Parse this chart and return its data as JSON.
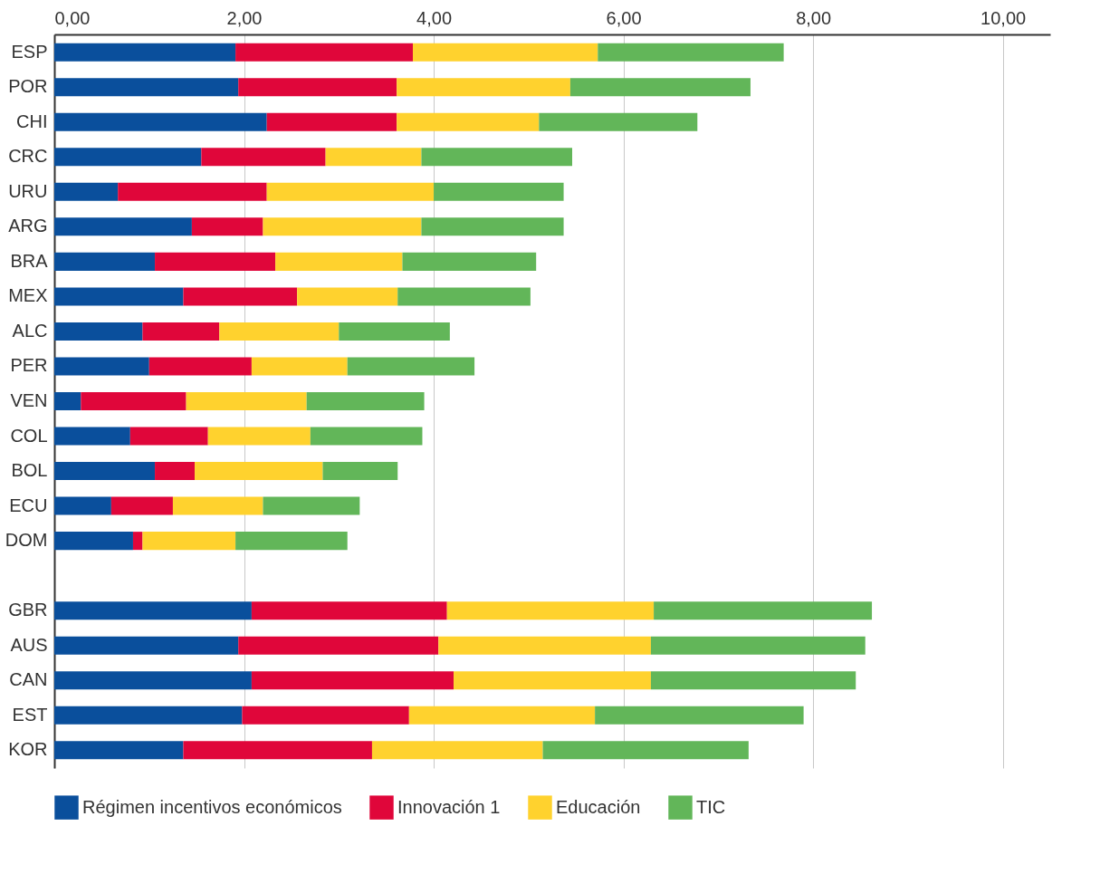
{
  "chart_data": {
    "type": "bar",
    "orientation": "horizontal",
    "stacked": true,
    "categories": [
      "ESP",
      "POR",
      "CHI",
      "CRC",
      "URU",
      "ARG",
      "BRA",
      "MEX",
      "ALC",
      "PER",
      "VEN",
      "COL",
      "BOL",
      "ECU",
      "DOM",
      null,
      "GBR",
      "AUS",
      "CAN",
      "EST",
      "KOR"
    ],
    "series": [
      {
        "name": "Régimen incentivos económicos",
        "color": "#0a4f9c",
        "values": [
          1.91,
          1.94,
          2.24,
          1.55,
          0.67,
          1.45,
          1.06,
          1.36,
          0.93,
          1.0,
          0.28,
          0.8,
          1.06,
          0.6,
          0.83,
          null,
          2.08,
          1.94,
          2.08,
          1.98,
          1.36
        ]
      },
      {
        "name": "Innovación 1",
        "color": "#e0063a",
        "values": [
          1.87,
          1.67,
          1.37,
          1.31,
          1.57,
          0.75,
          1.27,
          1.2,
          0.81,
          1.08,
          1.11,
          0.82,
          0.42,
          0.65,
          0.1,
          null,
          2.06,
          2.11,
          2.13,
          1.76,
          1.99
        ]
      },
      {
        "name": "Educación",
        "color": "#ffd22e",
        "values": [
          1.95,
          1.83,
          1.5,
          1.01,
          1.76,
          1.67,
          1.34,
          1.06,
          1.26,
          1.01,
          1.27,
          1.08,
          1.35,
          0.95,
          0.98,
          null,
          2.18,
          2.24,
          2.08,
          1.96,
          1.8
        ]
      },
      {
        "name": "TIC",
        "color": "#62b659",
        "values": [
          1.96,
          1.9,
          1.67,
          1.59,
          1.37,
          1.5,
          1.41,
          1.4,
          1.17,
          1.34,
          1.24,
          1.18,
          0.79,
          1.02,
          1.18,
          null,
          2.3,
          2.26,
          2.16,
          2.2,
          2.17
        ]
      }
    ],
    "xlim": [
      0,
      10.5
    ],
    "xticks": [
      {
        "value": 0,
        "label": "0,00"
      },
      {
        "value": 2,
        "label": "2,00"
      },
      {
        "value": 4,
        "label": "4,00"
      },
      {
        "value": 6,
        "label": "6,00"
      },
      {
        "value": 8,
        "label": "8,00"
      },
      {
        "value": 10,
        "label": "10,00"
      }
    ],
    "grid": "x",
    "legend": "bottom"
  }
}
